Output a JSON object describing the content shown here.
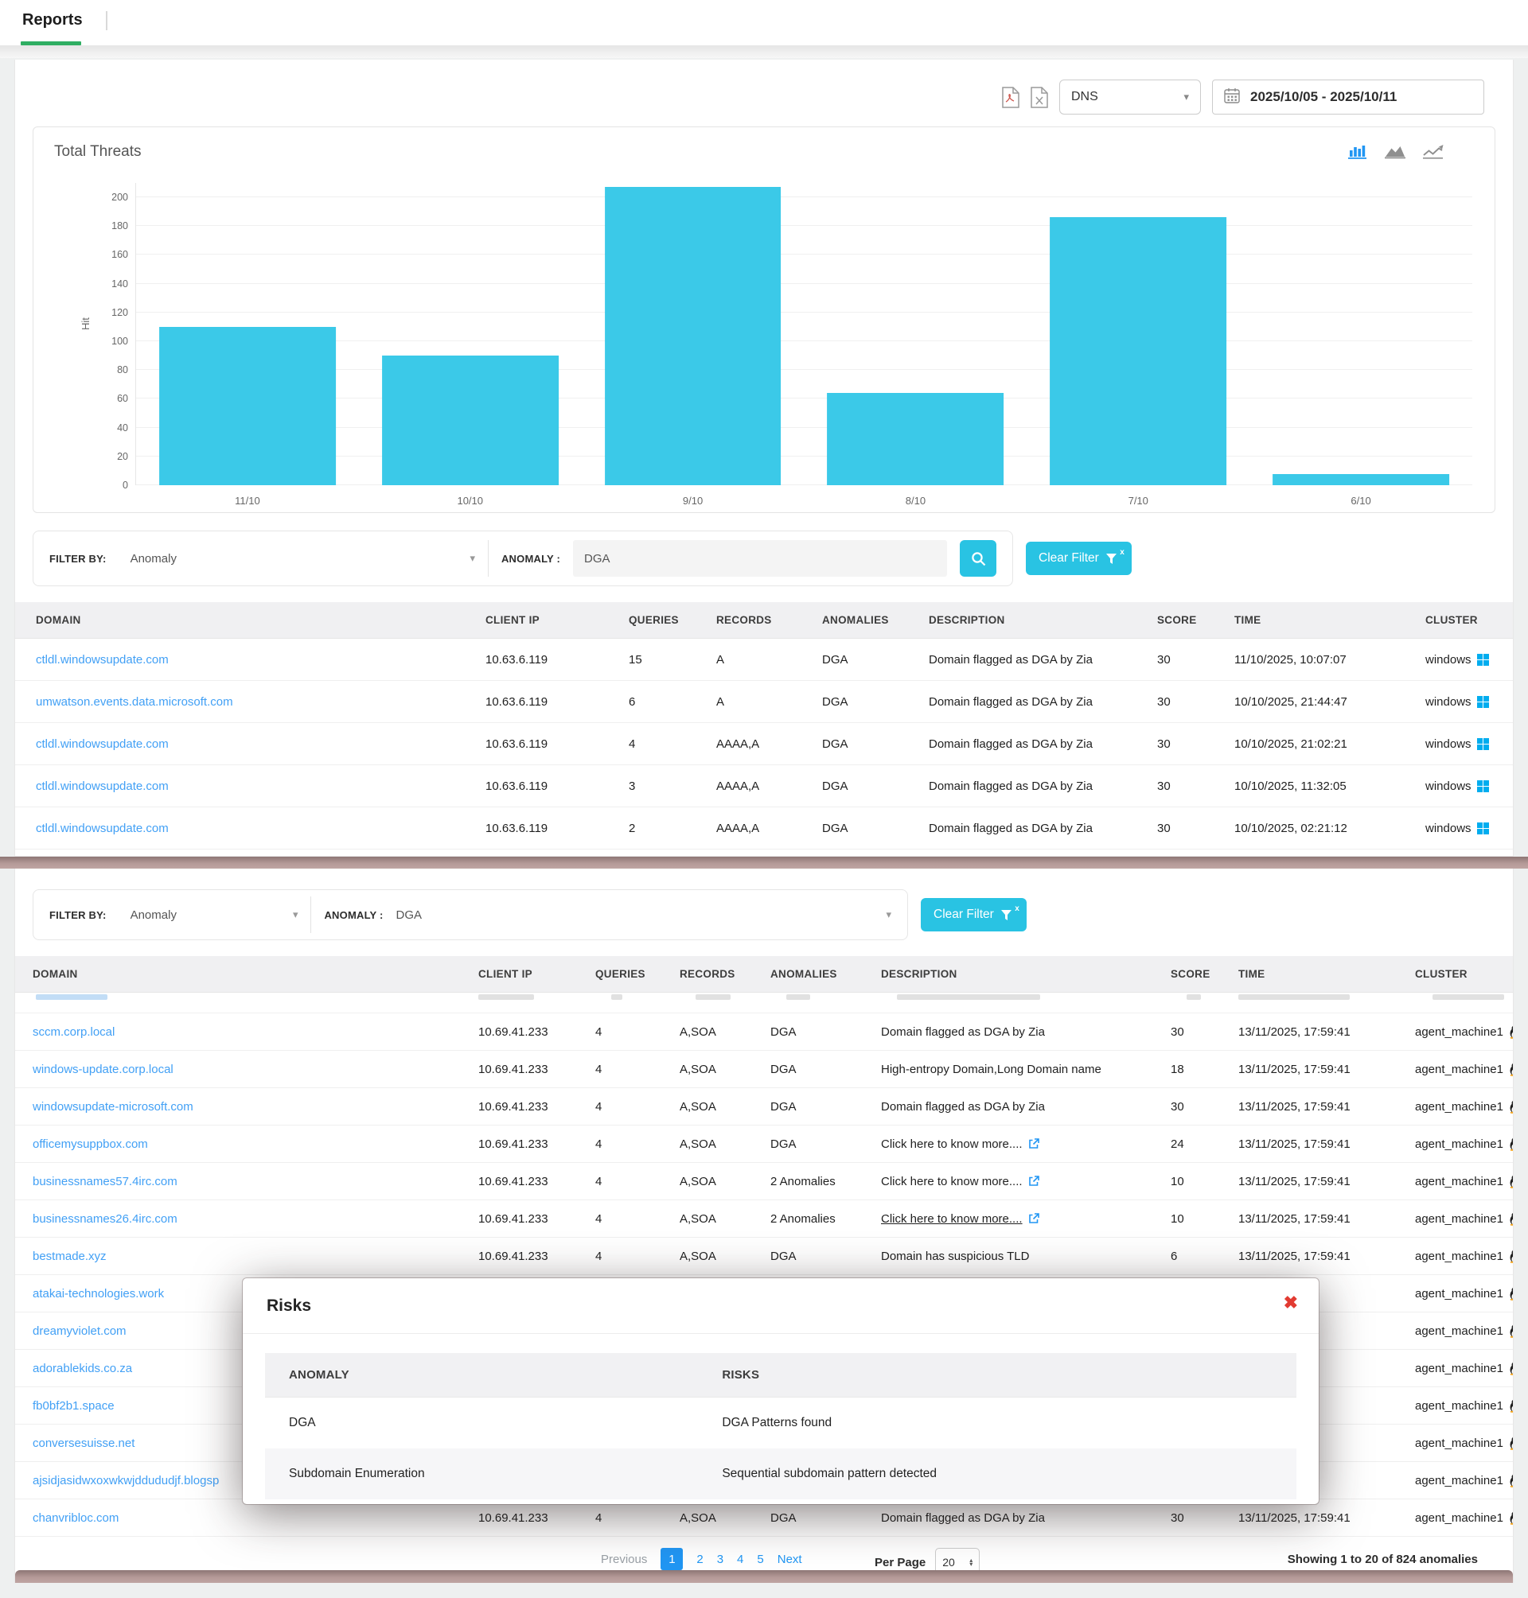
{
  "tabbar": {
    "reports_tab": "Reports"
  },
  "toolbar": {
    "export_icons": [
      "pdf-export-icon",
      "excel-export-icon"
    ],
    "report_type_value": "DNS",
    "date_range_value": "2025/10/05 - 2025/10/11"
  },
  "chart_data": {
    "type": "bar",
    "title": "Total Threats",
    "categories": [
      "11/10",
      "10/10",
      "9/10",
      "8/10",
      "7/10",
      "6/10"
    ],
    "values": [
      110,
      90,
      207,
      64,
      186,
      8
    ],
    "xlabel": "",
    "ylabel": "Hit",
    "ylim": [
      0,
      210
    ],
    "yticks": [
      0,
      20,
      40,
      60,
      80,
      100,
      120,
      140,
      160,
      180,
      200
    ],
    "bar_color": "#3bc9e8",
    "grid": true,
    "legend": "none",
    "toggle_icons": [
      "bar-chart-icon",
      "area-chart-icon",
      "line-chart-icon"
    ],
    "active_toggle": "bar-chart-icon"
  },
  "top_filter": {
    "filter_by_label": "FILTER BY:",
    "filter_by_value": "Anomaly",
    "anomaly_label": "ANOMALY :",
    "anomaly_value": "DGA",
    "clear_filter_label": "Clear Filter"
  },
  "bottom_filter": {
    "filter_by_label": "FILTER BY:",
    "filter_by_value": "Anomaly",
    "anomaly_label": "ANOMALY :",
    "anomaly_value": "DGA",
    "clear_filter_label": "Clear Filter"
  },
  "table_headers": [
    "DOMAIN",
    "CLIENT IP",
    "QUERIES",
    "RECORDS",
    "ANOMALIES",
    "DESCRIPTION",
    "SCORE",
    "TIME",
    "CLUSTER"
  ],
  "top_table": {
    "rows": [
      {
        "domain": "ctldl.windowsupdate.com",
        "client_ip": "10.63.6.119",
        "queries": "15",
        "records": "A",
        "anomalies": "DGA",
        "description": "Domain flagged as DGA by Zia",
        "score": "30",
        "time": "11/10/2025, 10:07:07",
        "cluster": "windows",
        "cluster_icon": "windows-icon"
      },
      {
        "domain": "umwatson.events.data.microsoft.com",
        "client_ip": "10.63.6.119",
        "queries": "6",
        "records": "A",
        "anomalies": "DGA",
        "description": "Domain flagged as DGA by Zia",
        "score": "30",
        "time": "10/10/2025, 21:44:47",
        "cluster": "windows",
        "cluster_icon": "windows-icon"
      },
      {
        "domain": "ctldl.windowsupdate.com",
        "client_ip": "10.63.6.119",
        "queries": "4",
        "records": "AAAA,A",
        "anomalies": "DGA",
        "description": "Domain flagged as DGA by Zia",
        "score": "30",
        "time": "10/10/2025, 21:02:21",
        "cluster": "windows",
        "cluster_icon": "windows-icon"
      },
      {
        "domain": "ctldl.windowsupdate.com",
        "client_ip": "10.63.6.119",
        "queries": "3",
        "records": "AAAA,A",
        "anomalies": "DGA",
        "description": "Domain flagged as DGA by Zia",
        "score": "30",
        "time": "10/10/2025, 11:32:05",
        "cluster": "windows",
        "cluster_icon": "windows-icon"
      },
      {
        "domain": "ctldl.windowsupdate.com",
        "client_ip": "10.63.6.119",
        "queries": "2",
        "records": "AAAA,A",
        "anomalies": "DGA",
        "description": "Domain flagged as DGA by Zia",
        "score": "30",
        "time": "10/10/2025, 02:21:12",
        "cluster": "windows",
        "cluster_icon": "windows-icon"
      }
    ]
  },
  "bottom_table": {
    "rows": [
      {
        "domain": "sccm.corp.local",
        "client_ip": "10.69.41.233",
        "queries": "4",
        "records": "A,SOA",
        "anomalies": "DGA",
        "description": "Domain flagged as DGA by Zia",
        "score": "30",
        "time": "13/11/2025, 17:59:41",
        "cluster": "agent_machine1",
        "cluster_icon": "linux-icon"
      },
      {
        "domain": "windows-update.corp.local",
        "client_ip": "10.69.41.233",
        "queries": "4",
        "records": "A,SOA",
        "anomalies": "DGA",
        "description": "High-entropy Domain,Long Domain name",
        "score": "18",
        "time": "13/11/2025, 17:59:41",
        "cluster": "agent_machine1",
        "cluster_icon": "linux-icon"
      },
      {
        "domain": "windowsupdate-microsoft.com",
        "client_ip": "10.69.41.233",
        "queries": "4",
        "records": "A,SOA",
        "anomalies": "DGA",
        "description": "Domain flagged as DGA by Zia",
        "score": "30",
        "time": "13/11/2025, 17:59:41",
        "cluster": "agent_machine1",
        "cluster_icon": "linux-icon"
      },
      {
        "domain": "officemysuppbox.com",
        "client_ip": "10.69.41.233",
        "queries": "4",
        "records": "A,SOA",
        "anomalies": "DGA",
        "description": "Click here to know more....",
        "desc_link": true,
        "score": "24",
        "time": "13/11/2025, 17:59:41",
        "cluster": "agent_machine1",
        "cluster_icon": "linux-icon"
      },
      {
        "domain": "businessnames57.4irc.com",
        "client_ip": "10.69.41.233",
        "queries": "4",
        "records": "A,SOA",
        "anomalies": "2 Anomalies",
        "description": "Click here to know more....",
        "desc_link": true,
        "score": "10",
        "time": "13/11/2025, 17:59:41",
        "cluster": "agent_machine1",
        "cluster_icon": "linux-icon"
      },
      {
        "domain": "businessnames26.4irc.com",
        "client_ip": "10.69.41.233",
        "queries": "4",
        "records": "A,SOA",
        "anomalies": "2 Anomalies",
        "description": "Click here to know more....",
        "desc_link": true,
        "desc_underline": true,
        "score": "10",
        "time": "13/11/2025, 17:59:41",
        "cluster": "agent_machine1",
        "cluster_icon": "linux-icon"
      },
      {
        "domain": "bestmade.xyz",
        "client_ip": "10.69.41.233",
        "queries": "4",
        "records": "A,SOA",
        "anomalies": "DGA",
        "description": "Domain has suspicious TLD",
        "score": "6",
        "time": "13/11/2025, 17:59:41",
        "cluster": "agent_machine1",
        "cluster_icon": "linux-icon"
      },
      {
        "domain": "atakai-technologies.work",
        "client_ip": "",
        "queries": "",
        "records": "",
        "anomalies": "",
        "description": "",
        "score": "",
        "time": "",
        "cluster": "agent_machine1",
        "cluster_icon": "linux-icon"
      },
      {
        "domain": "dreamyviolet.com",
        "client_ip": "",
        "queries": "",
        "records": "",
        "anomalies": "",
        "description": "",
        "score": "",
        "time": "",
        "cluster": "agent_machine1",
        "cluster_icon": "linux-icon"
      },
      {
        "domain": "adorablekids.co.za",
        "client_ip": "",
        "queries": "",
        "records": "",
        "anomalies": "",
        "description": "",
        "score": "",
        "time": "",
        "cluster": "agent_machine1",
        "cluster_icon": "linux-icon"
      },
      {
        "domain": "fb0bf2b1.space",
        "client_ip": "",
        "queries": "",
        "records": "",
        "anomalies": "",
        "description": "",
        "score": "",
        "time": "",
        "cluster": "agent_machine1",
        "cluster_icon": "linux-icon"
      },
      {
        "domain": "conversesuisse.net",
        "client_ip": "",
        "queries": "",
        "records": "",
        "anomalies": "",
        "description": "",
        "score": "",
        "time": "",
        "cluster": "agent_machine1",
        "cluster_icon": "linux-icon"
      },
      {
        "domain": "ajsidjasidwxoxwkwjddududjf.blogsp",
        "client_ip": "",
        "queries": "",
        "records": "",
        "anomalies": "",
        "description": "",
        "score": "",
        "time": "",
        "cluster": "agent_machine1",
        "cluster_icon": "linux-icon"
      },
      {
        "domain": "chanvribloc.com",
        "client_ip": "10.69.41.233",
        "queries": "4",
        "records": "A,SOA",
        "anomalies": "DGA",
        "description": "Domain flagged as DGA by Zia",
        "score": "30",
        "time": "13/11/2025, 17:59:41",
        "cluster": "agent_machine1",
        "cluster_icon": "linux-icon"
      }
    ]
  },
  "modal": {
    "title": "Risks",
    "close_icon": "close-icon",
    "headers": [
      "ANOMALY",
      "RISKS"
    ],
    "rows": [
      {
        "anomaly": "DGA",
        "risk": "DGA Patterns found"
      },
      {
        "anomaly": "Subdomain Enumeration",
        "risk": "Sequential subdomain pattern detected"
      }
    ]
  },
  "pagination": {
    "previous_label": "Previous",
    "pages": [
      "1",
      "2",
      "3",
      "4",
      "5"
    ],
    "active_page": "1",
    "next_label": "Next",
    "per_page_label": "Per Page",
    "per_page_value": "20",
    "showing_text": "Showing 1 to 20 of 824 anomalies"
  },
  "colors": {
    "accent_cyan": "#29c3e3",
    "bar_cyan": "#3bc9e8",
    "link_blue": "#42a0f5",
    "active_page_blue": "#2196f3",
    "tab_green": "#2fae62",
    "divider_mauve": "#b49997",
    "close_red": "#e23b32"
  }
}
